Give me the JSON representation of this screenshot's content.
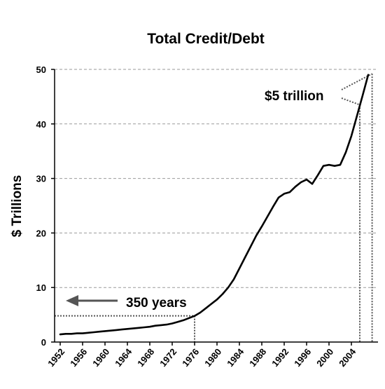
{
  "chart_data": {
    "type": "line",
    "title": "Total Credit/Debt",
    "xlabel": "",
    "ylabel": "$ Trillions",
    "xlim": [
      1952,
      2008
    ],
    "ylim": [
      0,
      50
    ],
    "yticks": [
      0,
      10,
      20,
      30,
      40,
      50
    ],
    "xtick_labels": [
      "1952",
      "1956",
      "1960",
      "1964",
      "1968",
      "1972",
      "1976",
      "1980",
      "1984",
      "1988",
      "1992",
      "1996",
      "2000",
      "2004"
    ],
    "grid": "horizontal dashed",
    "colors": {
      "line": "#000000",
      "grid": "#9a9a9a",
      "arrow": "#555555",
      "guide": "#555555"
    },
    "series": [
      {
        "x": [
          1952,
          1953,
          1954,
          1955,
          1956,
          1957,
          1958,
          1959,
          1960,
          1961,
          1962,
          1963,
          1964,
          1965,
          1966,
          1967,
          1968,
          1969,
          1970,
          1971,
          1972,
          1973,
          1974,
          1975,
          1976,
          1977,
          1978,
          1979,
          1980,
          1981,
          1982,
          1983,
          1984,
          1985,
          1986,
          1987,
          1988,
          1989,
          1990,
          1991,
          1992,
          1993,
          1994,
          1995,
          1996,
          1997,
          1998,
          1999,
          2000,
          2001,
          2002,
          2003,
          2004,
          2005,
          2006,
          2007
        ],
        "values": [
          1.4,
          1.5,
          1.5,
          1.6,
          1.6,
          1.7,
          1.8,
          1.9,
          2.0,
          2.1,
          2.2,
          2.3,
          2.4,
          2.5,
          2.6,
          2.7,
          2.8,
          3.0,
          3.1,
          3.2,
          3.4,
          3.7,
          4.0,
          4.4,
          4.8,
          5.4,
          6.2,
          7.0,
          7.8,
          8.8,
          10.0,
          11.5,
          13.5,
          15.5,
          17.5,
          19.5,
          21.2,
          23.0,
          24.8,
          26.5,
          27.2,
          27.5,
          28.5,
          29.3,
          29.8,
          29.0,
          30.6,
          32.3,
          32.5,
          32.3,
          32.5,
          34.8,
          37.8,
          41.5,
          45.2,
          49.0
        ]
      }
    ],
    "annotations": [
      {
        "text": "350 years",
        "x": 1976,
        "y": 4.8
      },
      {
        "text": "$5 trillion",
        "x": 2006,
        "y": 46
      }
    ]
  }
}
